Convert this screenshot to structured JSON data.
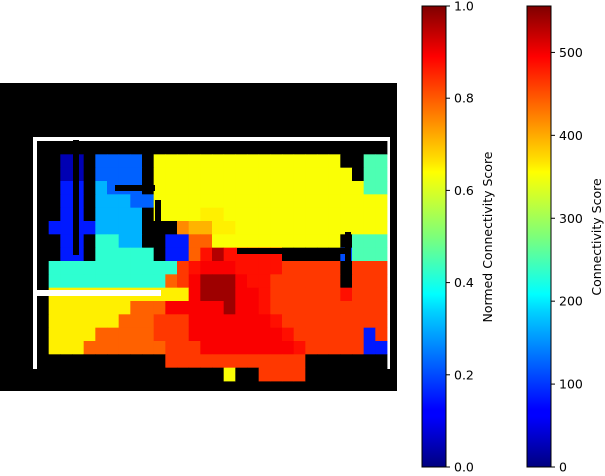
{
  "chart_data": {
    "type": "heatmap",
    "title": "",
    "colormap": "jet",
    "background_color": "#000000",
    "wall_color": "#ffffff",
    "heatmap": {
      "description_free": true,
      "cols": 30,
      "rows": 18,
      "value_range": [
        0,
        1
      ],
      "grid": [
        "..............................",
        "..bb.hhhh.mmmmmmmmmmmmmmmm..kk",
        "..bb.hhhh.mmmmmmmmmmmmmmmmm.kk",
        "..cc.ihhh.mmmmmmmmmmmmmmmmmmkk",
        "..cc.iiihhmmmmmmmmmmmmmmmmmmmm",
        "..cc.iiii.mmmmnnmmmmmmmmmmmmmm",
        ".cccciiii...pqqnnmmmmmmmmmmmmm",
        "..cc.jjii..ccssmmmmmmmmmmm.kkk",
        "..cc.jjjjj.ccsuvuuuuu.....dkkk",
        ".jjjjjjjjjjjtuwwwuuuuttttt.ttt",
        ".jjjjjjjjjjstwxxxwuutttttt.ttt",
        ".nnnnnnnnnnnnwxxxwwuttttttuttt",
        ".nnnnnnnssswwwwwxwwutttttttttt",
        ".nnnnnnssstttwwwwwwwuttttttttt",
        ".nnnnssssstttwwwwwwwwuttttttct",
        ".nnnssssssstttwwwwwwwwutttttcc",
        "...........rrrrrrrrrrrr.......",
        "................m..rrrr......."
      ],
      "legend": {
        "b": 0.05,
        "c": 0.15,
        "d": 0.2,
        "h": 0.22,
        "i": 0.3,
        "j": 0.42,
        "k": 0.45,
        "m": 0.62,
        "n": 0.64,
        "p": 0.74,
        "q": 0.7,
        "r": 0.82,
        "s": 0.78,
        "t": 0.82,
        "u": 0.86,
        "v": 0.95,
        "w": 0.88,
        "x": 0.97
      }
    },
    "colorbars": [
      {
        "label": "Normed Connectivity Score",
        "range": [
          0.0,
          1.0
        ],
        "ticks": [
          {
            "value": 0.0,
            "label": "0.0"
          },
          {
            "value": 0.2,
            "label": "0.2"
          },
          {
            "value": 0.4,
            "label": "0.4"
          },
          {
            "value": 0.6,
            "label": "0.6"
          },
          {
            "value": 0.8,
            "label": "0.8"
          },
          {
            "value": 1.0,
            "label": "1.0"
          }
        ]
      },
      {
        "label": "Connectivity Score",
        "range": [
          0,
          556
        ],
        "ticks": [
          {
            "value": 0,
            "label": "0"
          },
          {
            "value": 100,
            "label": "100"
          },
          {
            "value": 200,
            "label": "200"
          },
          {
            "value": 300,
            "label": "300"
          },
          {
            "value": 400,
            "label": "400"
          },
          {
            "value": 500,
            "label": "500"
          }
        ]
      }
    ]
  }
}
